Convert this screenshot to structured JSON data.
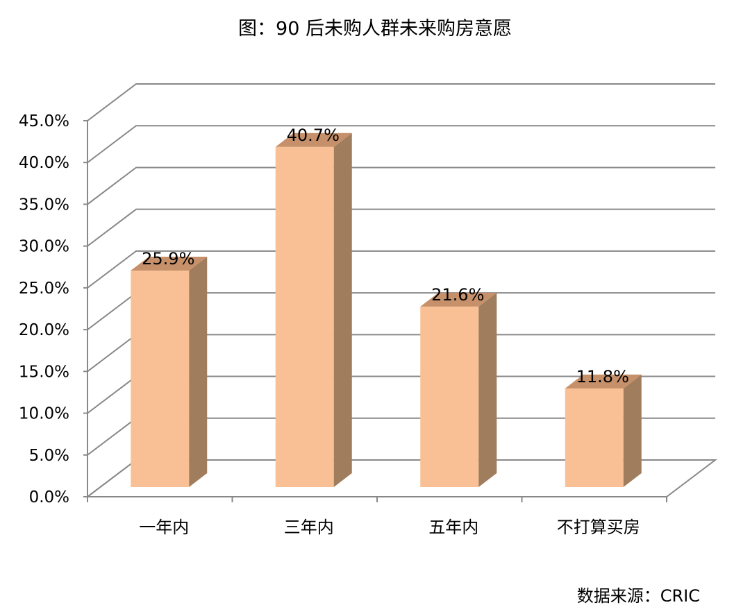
{
  "chart_data": {
    "type": "bar",
    "title": "图：90 后未购人群未来购房意愿",
    "source": "数据来源：CRIC",
    "categories": [
      "一年内",
      "三年内",
      "五年内",
      "不打算买房"
    ],
    "values": [
      25.9,
      40.7,
      21.6,
      11.8
    ],
    "data_labels": [
      "25.9%",
      "40.7%",
      "21.6%",
      "11.8%"
    ],
    "y_ticks": [
      "0.0%",
      "5.0%",
      "10.0%",
      "15.0%",
      "20.0%",
      "25.0%",
      "30.0%",
      "35.0%",
      "40.0%",
      "45.0%"
    ],
    "ylim": [
      0,
      45
    ],
    "xlabel": "",
    "ylabel": "",
    "grid": true,
    "style": "3d-column",
    "colors": {
      "bar_front": "#F9C095",
      "bar_side": "#A07D5C",
      "bar_top": "#C6906A",
      "grid": "#888888",
      "axis": "#888888"
    }
  }
}
